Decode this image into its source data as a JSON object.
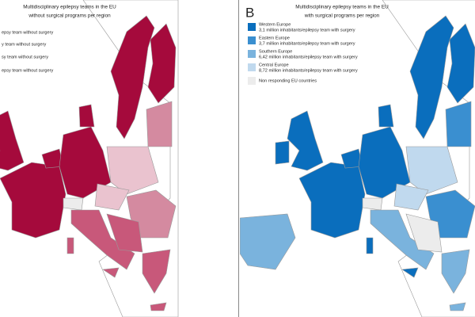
{
  "panel_a": {
    "title": [
      "Multidisciplinary epilepsy teams in the EU",
      "without surgical programs per region"
    ],
    "legend": [
      "epsy team without surgery",
      "y team without surgery",
      "sy team without surgery",
      "epsy team without surgery"
    ]
  },
  "panel_b": {
    "label": "B",
    "title": [
      "Multidisciplinary epilepsy teams in the EU",
      "with surgical programs per region"
    ],
    "legend": [
      {
        "name": "Western Europe",
        "detail": "3,1 million inhabitants/epilepsy team with surgery"
      },
      {
        "name": "Eastern Europe",
        "detail": "3,7 million inhabitants/epilepsy team with surgery"
      },
      {
        "name": "Southern Europe",
        "detail": "6,42 million inhabitants/epilepsy team with surgery"
      },
      {
        "name": "Central Europe",
        "detail": "8,72 million inhabitants/epilepsy team with surgery"
      },
      {
        "name": "Non responding EU countries"
      }
    ]
  }
}
